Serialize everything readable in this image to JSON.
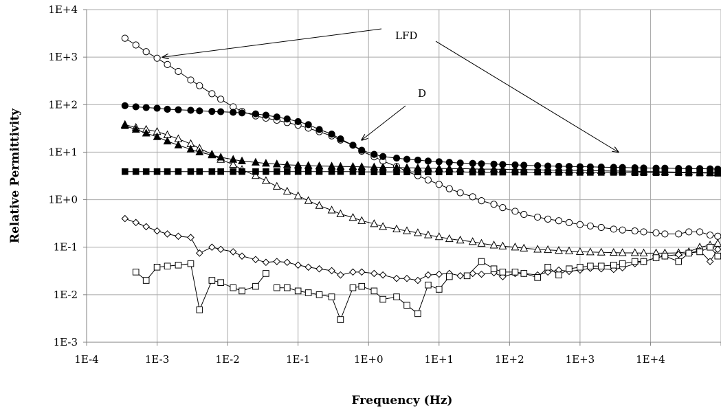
{
  "chart_data": {
    "type": "scatter",
    "title": "",
    "xlabel": "Frequency (Hz)",
    "ylabel": "Relative Permittivity",
    "xscale": "log",
    "yscale": "log",
    "xlim": [
      0.0001,
      100000
    ],
    "ylim": [
      0.001,
      10000
    ],
    "grid": true,
    "legend": "none",
    "x_tick_labels": [
      "1E-4",
      "1E-3",
      "1E-2",
      "1E-1",
      "1E+0",
      "1E+1",
      "1E+2",
      "1E+3",
      "1E+4"
    ],
    "y_tick_labels": [
      "1E-3",
      "1E-2",
      "1E-1",
      "1E+0",
      "1E+1",
      "1E+2",
      "1E+3",
      "1E+4"
    ],
    "annotations": [
      {
        "text": "LFD",
        "targets": [
          [
            0.0012,
            1000
          ],
          [
            3500,
            10
          ]
        ]
      },
      {
        "text": "D",
        "targets": [
          [
            0.8,
            18
          ]
        ]
      }
    ],
    "series": [
      {
        "marker": "circle-open",
        "x": [
          0.00035,
          0.0005,
          0.0007,
          0.001,
          0.0014,
          0.002,
          0.003,
          0.004,
          0.006,
          0.008,
          0.012,
          0.016,
          0.025,
          0.035,
          0.05,
          0.07,
          0.1,
          0.14,
          0.2,
          0.3,
          0.4,
          0.6,
          0.8,
          1.2,
          1.6,
          2.5,
          3.5,
          5,
          7,
          10,
          14,
          20,
          30,
          40,
          60,
          80,
          120,
          160,
          250,
          350,
          500,
          700,
          1000,
          1400,
          2000,
          3000,
          4000,
          6000,
          8000,
          12000,
          16000,
          25000,
          35000,
          50000,
          70000,
          90000
        ],
        "y": [
          2500,
          1800,
          1300,
          950,
          700,
          500,
          330,
          250,
          170,
          130,
          90,
          72,
          58,
          52,
          47,
          42,
          37,
          32,
          27,
          22,
          18,
          14,
          10.5,
          8,
          6.5,
          5,
          3.9,
          3.2,
          2.6,
          2.1,
          1.7,
          1.4,
          1.15,
          0.95,
          0.8,
          0.68,
          0.57,
          0.49,
          0.43,
          0.39,
          0.36,
          0.33,
          0.3,
          0.28,
          0.26,
          0.24,
          0.23,
          0.22,
          0.21,
          0.2,
          0.19,
          0.19,
          0.21,
          0.21,
          0.18,
          0.17
        ]
      },
      {
        "marker": "circle-filled",
        "x": [
          0.00035,
          0.0005,
          0.0007,
          0.001,
          0.0014,
          0.002,
          0.003,
          0.004,
          0.006,
          0.008,
          0.012,
          0.016,
          0.025,
          0.035,
          0.05,
          0.07,
          0.1,
          0.14,
          0.2,
          0.3,
          0.4,
          0.6,
          0.8,
          1.2,
          1.6,
          2.5,
          3.5,
          5,
          7,
          10,
          14,
          20,
          30,
          40,
          60,
          80,
          120,
          160,
          250,
          350,
          500,
          700,
          1000,
          1400,
          2000,
          3000,
          4000,
          6000,
          8000,
          12000,
          16000,
          25000,
          35000,
          50000,
          70000,
          90000
        ],
        "y": [
          95,
          90,
          87,
          84,
          80,
          78,
          76,
          74,
          72,
          71,
          69,
          67,
          64,
          60,
          55,
          50,
          44,
          38,
          30,
          24,
          19,
          14,
          11,
          9,
          8.1,
          7.5,
          7.1,
          6.8,
          6.5,
          6.3,
          6.1,
          5.9,
          5.8,
          5.7,
          5.6,
          5.5,
          5.4,
          5.3,
          5.2,
          5.1,
          5.05,
          5,
          4.95,
          4.9,
          4.85,
          4.8,
          4.75,
          4.7,
          4.65,
          4.6,
          4.6,
          4.55,
          4.5,
          4.5,
          4.45,
          4.4
        ]
      },
      {
        "marker": "triangle-open",
        "x": [
          0.00035,
          0.0005,
          0.0007,
          0.001,
          0.0014,
          0.002,
          0.003,
          0.004,
          0.006,
          0.008,
          0.012,
          0.016,
          0.025,
          0.035,
          0.05,
          0.07,
          0.1,
          0.14,
          0.2,
          0.3,
          0.4,
          0.6,
          0.8,
          1.2,
          1.6,
          2.5,
          3.5,
          5,
          7,
          10,
          14,
          20,
          30,
          40,
          60,
          80,
          120,
          160,
          250,
          350,
          500,
          700,
          1000,
          1400,
          2000,
          3000,
          4000,
          6000,
          8000,
          12000,
          16000,
          25000,
          35000,
          50000,
          70000,
          90000
        ],
        "y": [
          38,
          33,
          30,
          27,
          23,
          19,
          15,
          12,
          9,
          7,
          5.5,
          4.3,
          3.2,
          2.5,
          1.9,
          1.5,
          1.2,
          0.95,
          0.75,
          0.6,
          0.5,
          0.42,
          0.36,
          0.31,
          0.27,
          0.24,
          0.22,
          0.2,
          0.18,
          0.165,
          0.15,
          0.14,
          0.13,
          0.12,
          0.11,
          0.105,
          0.1,
          0.095,
          0.09,
          0.088,
          0.085,
          0.083,
          0.08,
          0.079,
          0.078,
          0.077,
          0.076,
          0.076,
          0.075,
          0.075,
          0.075,
          0.076,
          0.08,
          0.1,
          0.11,
          0.12
        ]
      },
      {
        "marker": "triangle-filled",
        "x": [
          0.00035,
          0.0005,
          0.0007,
          0.001,
          0.0014,
          0.002,
          0.003,
          0.004,
          0.006,
          0.008,
          0.012,
          0.016,
          0.025,
          0.035,
          0.05,
          0.07,
          0.1,
          0.14,
          0.2,
          0.3,
          0.4,
          0.6,
          0.8,
          1.2,
          1.6,
          2.5,
          3.5,
          5,
          7,
          10,
          14,
          20,
          30,
          40,
          60,
          80,
          120,
          160,
          250,
          350,
          500,
          700,
          1000,
          1400,
          2000,
          3000,
          4000,
          6000,
          8000,
          12000,
          16000,
          25000,
          35000,
          50000,
          70000,
          90000
        ],
        "y": [
          36,
          30,
          25,
          21,
          17,
          14,
          11.5,
          10,
          8.7,
          7.8,
          7,
          6.5,
          6.1,
          5.8,
          5.6,
          5.4,
          5.3,
          5.2,
          5.1,
          5.05,
          5,
          4.95,
          4.9,
          4.85,
          4.8,
          4.75,
          4.7,
          4.65,
          4.6,
          4.55,
          4.5,
          4.5,
          4.45,
          4.4,
          4.4,
          4.35,
          4.3,
          4.3,
          4.25,
          4.2,
          4.2,
          4.15,
          4.1,
          4.1,
          4.05,
          4.0,
          4.0,
          3.95,
          3.9,
          3.9,
          3.85,
          3.8,
          3.8,
          3.75,
          3.7,
          3.7
        ]
      },
      {
        "marker": "square-filled",
        "x": [
          0.00035,
          0.0005,
          0.0007,
          0.001,
          0.0014,
          0.002,
          0.003,
          0.004,
          0.006,
          0.008,
          0.012,
          0.016,
          0.025,
          0.035,
          0.05,
          0.07,
          0.1,
          0.14,
          0.2,
          0.3,
          0.4,
          0.6,
          0.8,
          1.2,
          1.6,
          2.5,
          3.5,
          5,
          7,
          10,
          14,
          20,
          30,
          40,
          60,
          80,
          120,
          160,
          250,
          350,
          500,
          700,
          1000,
          1400,
          2000,
          3000,
          4000,
          6000,
          8000,
          12000,
          16000,
          25000,
          35000,
          50000,
          70000,
          90000
        ],
        "y": [
          3.9,
          3.9,
          3.9,
          3.9,
          3.9,
          3.9,
          3.9,
          3.9,
          3.9,
          3.9,
          3.9,
          3.9,
          3.9,
          3.9,
          3.9,
          3.9,
          3.9,
          3.9,
          3.9,
          3.9,
          3.9,
          3.9,
          3.85,
          3.85,
          3.85,
          3.85,
          3.85,
          3.85,
          3.85,
          3.85,
          3.85,
          3.85,
          3.8,
          3.8,
          3.8,
          3.8,
          3.8,
          3.8,
          3.8,
          3.8,
          3.75,
          3.75,
          3.75,
          3.75,
          3.75,
          3.75,
          3.75,
          3.7,
          3.7,
          3.7,
          3.7,
          3.7,
          3.65,
          3.65,
          3.65,
          3.6
        ]
      },
      {
        "marker": "diamond-open",
        "x": [
          0.00035,
          0.0005,
          0.0007,
          0.001,
          0.0014,
          0.002,
          0.003,
          0.004,
          0.006,
          0.008,
          0.012,
          0.016,
          0.025,
          0.035,
          0.05,
          0.07,
          0.1,
          0.14,
          0.2,
          0.3,
          0.4,
          0.6,
          0.8,
          1.2,
          1.6,
          2.5,
          3.5,
          5,
          7,
          10,
          14,
          20,
          30,
          40,
          60,
          80,
          120,
          160,
          250,
          350,
          500,
          700,
          1000,
          1400,
          2000,
          3000,
          4000,
          6000,
          8000,
          12000,
          16000,
          25000,
          35000,
          50000,
          70000,
          90000
        ],
        "y": [
          0.4,
          0.33,
          0.27,
          0.22,
          0.19,
          0.17,
          0.16,
          0.075,
          0.1,
          0.09,
          0.08,
          0.065,
          0.055,
          0.048,
          0.05,
          0.048,
          0.042,
          0.038,
          0.035,
          0.032,
          0.026,
          0.03,
          0.03,
          0.028,
          0.026,
          0.022,
          0.022,
          0.02,
          0.026,
          0.027,
          0.028,
          0.025,
          0.028,
          0.027,
          0.029,
          0.024,
          0.028,
          0.028,
          0.026,
          0.03,
          0.033,
          0.031,
          0.033,
          0.036,
          0.035,
          0.034,
          0.037,
          0.045,
          0.05,
          0.06,
          0.065,
          0.07,
          0.075,
          0.085,
          0.05,
          0.09
        ]
      },
      {
        "marker": "square-open",
        "x": [
          0.0005,
          0.0007,
          0.001,
          0.0014,
          0.002,
          0.003,
          0.004,
          0.006,
          0.008,
          0.012,
          0.016,
          0.025,
          0.035,
          null,
          0.05,
          0.07,
          0.1,
          0.14,
          0.2,
          0.3,
          0.4,
          0.6,
          0.8,
          1.2,
          1.6,
          2.5,
          3.5,
          5,
          7,
          10,
          14,
          null,
          25,
          40,
          60,
          80,
          120,
          160,
          250,
          350,
          500,
          700,
          1000,
          1400,
          2000,
          3000,
          4000,
          6000,
          8000,
          12000,
          16000,
          25000,
          35000,
          50000,
          70000,
          90000
        ],
        "y": [
          0.03,
          0.02,
          0.038,
          0.04,
          0.042,
          0.045,
          0.0048,
          0.02,
          0.018,
          0.014,
          0.012,
          0.015,
          0.028,
          null,
          0.014,
          0.014,
          0.012,
          0.011,
          0.01,
          0.009,
          0.003,
          0.014,
          0.015,
          0.012,
          0.008,
          0.009,
          0.006,
          0.004,
          0.016,
          0.013,
          0.024,
          null,
          0.025,
          0.05,
          0.035,
          0.03,
          0.03,
          0.028,
          0.023,
          0.038,
          0.026,
          0.035,
          0.038,
          0.04,
          0.04,
          0.042,
          0.045,
          0.05,
          0.05,
          0.06,
          0.065,
          0.05,
          0.075,
          0.08,
          0.1,
          0.065
        ]
      }
    ]
  }
}
